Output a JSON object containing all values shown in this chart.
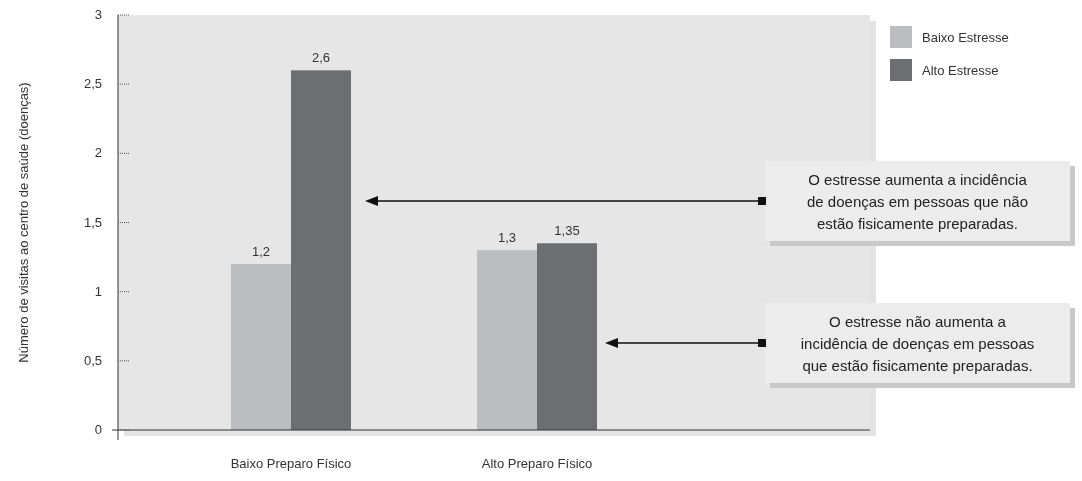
{
  "chart_data": {
    "type": "bar",
    "ylabel": "Número de visitas ao centro de saúde (doenças)",
    "categories": [
      "Baixo Preparo Físico",
      "Alto Preparo Físico"
    ],
    "series": [
      {
        "name": "Baixo Estresse",
        "color": "#bcbdc0",
        "values": [
          1.2,
          1.3
        ]
      },
      {
        "name": "Alto Estresse",
        "color": "#6d6e71",
        "values": [
          2.6,
          1.35
        ]
      }
    ],
    "ylim": [
      0,
      3
    ],
    "yticks": [
      {
        "value": 0,
        "label": "0"
      },
      {
        "value": 0.5,
        "label": "0,5"
      },
      {
        "value": 1,
        "label": "1"
      },
      {
        "value": 1.5,
        "label": "1,5"
      },
      {
        "value": 2,
        "label": "2"
      },
      {
        "value": 2.5,
        "label": "2,5"
      },
      {
        "value": 3,
        "label": "3"
      }
    ],
    "value_labels": [
      [
        "1,2",
        "1,3"
      ],
      [
        "2,6",
        "1,35"
      ]
    ],
    "legend": "top right",
    "annotations": [
      "O estresse aumenta a incidência de doenças em pessoas que não estão fisicamente preparadas.",
      "O estresse não aumenta a incidência de doenças em pessoas que estão fisicamente preparadas."
    ]
  }
}
